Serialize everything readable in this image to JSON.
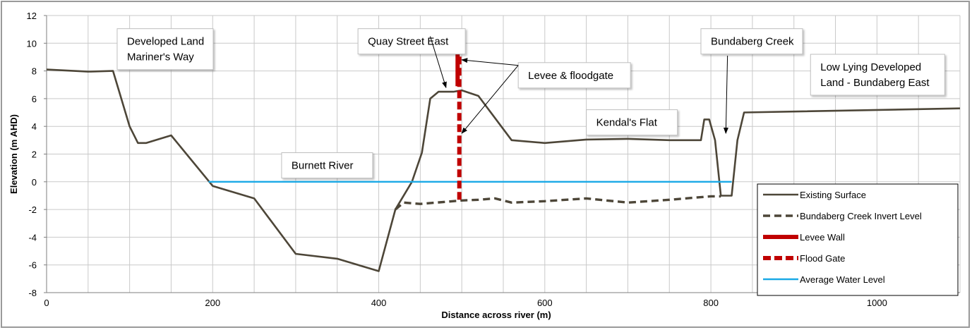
{
  "chart_data": {
    "type": "line",
    "title": "",
    "xlabel": "Distance across river (m)",
    "ylabel": "Elevation (m AHD)",
    "xlim": [
      0,
      1100
    ],
    "ylim": [
      -8,
      12
    ],
    "x_ticks": [
      0,
      200,
      400,
      600,
      800,
      1000
    ],
    "x_minor_step": 50,
    "y_ticks": [
      -8,
      -6,
      -4,
      -2,
      0,
      2,
      4,
      6,
      8,
      10,
      12
    ],
    "grid": true,
    "legend_placement": "bottom-right",
    "series": [
      {
        "name": "Existing Surface",
        "style": "solid",
        "color": "#4d4638",
        "points": [
          [
            0,
            8.1
          ],
          [
            50,
            7.95
          ],
          [
            80,
            8.0
          ],
          [
            100,
            4.0
          ],
          [
            110,
            2.8
          ],
          [
            120,
            2.8
          ],
          [
            150,
            3.35
          ],
          [
            200,
            -0.3
          ],
          [
            250,
            -1.2
          ],
          [
            300,
            -5.2
          ],
          [
            350,
            -5.55
          ],
          [
            400,
            -6.45
          ],
          [
            420,
            -2.0
          ],
          [
            440,
            0.0
          ],
          [
            452,
            2.1
          ],
          [
            462,
            6.0
          ],
          [
            472,
            6.5
          ],
          [
            490,
            6.5
          ],
          [
            500,
            6.6
          ],
          [
            520,
            6.2
          ],
          [
            560,
            3.0
          ],
          [
            600,
            2.8
          ],
          [
            650,
            3.05
          ],
          [
            700,
            3.1
          ],
          [
            750,
            3.0
          ],
          [
            788,
            3.0
          ],
          [
            792,
            4.5
          ],
          [
            798,
            4.5
          ],
          [
            805,
            3.0
          ],
          [
            812,
            -1.0
          ],
          [
            825,
            -1.0
          ],
          [
            832,
            3.0
          ],
          [
            840,
            5.0
          ],
          [
            1100,
            5.3
          ]
        ]
      },
      {
        "name": "Bundaberg Creek Invert Level",
        "style": "dashed",
        "color": "#4d4638",
        "points": [
          [
            420,
            -2.0
          ],
          [
            430,
            -1.5
          ],
          [
            450,
            -1.6
          ],
          [
            500,
            -1.35
          ],
          [
            520,
            -1.3
          ],
          [
            540,
            -1.2
          ],
          [
            560,
            -1.5
          ],
          [
            600,
            -1.4
          ],
          [
            650,
            -1.2
          ],
          [
            700,
            -1.5
          ],
          [
            750,
            -1.3
          ],
          [
            800,
            -1.05
          ],
          [
            812,
            -1.05
          ]
        ]
      },
      {
        "name": "Levee Wall",
        "style": "solid",
        "color": "#c00000",
        "points": [
          [
            495,
            6.9
          ],
          [
            495,
            9.9
          ]
        ]
      },
      {
        "name": "Flood Gate",
        "style": "dashed",
        "color": "#c00000",
        "points": [
          [
            497,
            -1.3
          ],
          [
            497,
            10.5
          ]
        ]
      },
      {
        "name": "Average Water Level",
        "style": "solid",
        "color": "#1aa9e6",
        "points": [
          [
            195,
            0.0
          ],
          [
            825,
            0.0
          ]
        ]
      }
    ],
    "annotations": [
      {
        "lines": [
          "Developed Land",
          "Mariner's Way"
        ],
        "anchor": [
          85,
          11.05
        ]
      },
      {
        "lines": [
          "Quay Street East"
        ],
        "anchor": [
          375,
          11.05
        ],
        "arrow_to": [
          [
            462,
            10.5,
            481,
            6.8
          ]
        ]
      },
      {
        "lines": [
          "Levee & floodgate"
        ],
        "anchor": [
          568,
          8.6
        ],
        "arrow_to": [
          [
            568,
            8.4,
            500,
            8.8
          ],
          [
            568,
            8.4,
            500,
            3.5
          ]
        ]
      },
      {
        "lines": [
          "Bundaberg Creek"
        ],
        "anchor": [
          788,
          11.05
        ],
        "arrow_to": [
          [
            820,
            9.1,
            818,
            3.5
          ]
        ]
      },
      {
        "lines": [
          "Low Lying Developed",
          "Land - Bundaberg East"
        ],
        "anchor": [
          920,
          9.2
        ]
      },
      {
        "lines": [
          "Kendal's Flat"
        ],
        "anchor": [
          650,
          5.2
        ]
      },
      {
        "lines": [
          "Burnett River"
        ],
        "anchor": [
          283,
          2.1
        ]
      }
    ]
  }
}
